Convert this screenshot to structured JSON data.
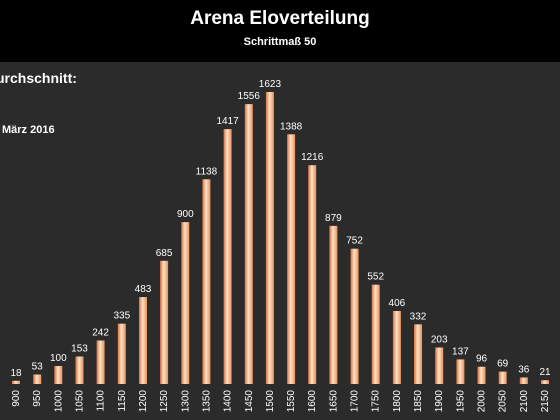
{
  "header": {
    "title": "Arena Eloverteilung",
    "subtitle": "Schrittmaß 50"
  },
  "annotations": {
    "average": "urchschnitt:",
    "date": "März 2016"
  },
  "colors": {
    "background": "#2b2b2b",
    "header": "#000000",
    "bar_light": "#fde1c8",
    "bar_dark": "#e8925a",
    "text": "#ffffff"
  },
  "chart_data": {
    "type": "bar",
    "title": "Arena Eloverteilung",
    "subtitle": "Schrittmaß 50",
    "categories": [
      "900",
      "950",
      "1000",
      "1050",
      "1100",
      "1150",
      "1200",
      "1250",
      "1300",
      "1350",
      "1400",
      "1450",
      "1500",
      "1550",
      "1600",
      "1650",
      "1700",
      "1750",
      "1800",
      "1850",
      "1900",
      "1950",
      "2000",
      "2050",
      "2100",
      "2150"
    ],
    "values": [
      18,
      53,
      100,
      153,
      242,
      335,
      483,
      685,
      900,
      1138,
      1417,
      1556,
      1623,
      1388,
      1216,
      879,
      752,
      552,
      406,
      332,
      203,
      137,
      96,
      69,
      36,
      21
    ],
    "xlabel": "",
    "ylabel": "",
    "ylim": [
      0,
      1623
    ],
    "grid": false,
    "legend": "none",
    "data_labels": true
  }
}
